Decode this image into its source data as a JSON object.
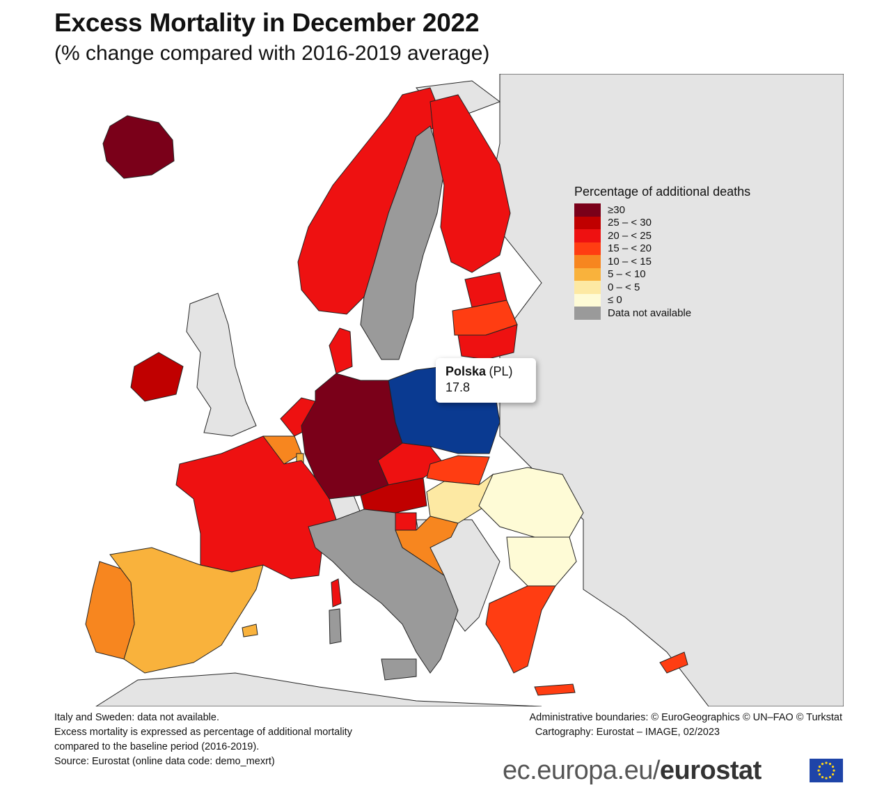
{
  "title": "Excess Mortality in December 2022",
  "subtitle": "(% change compared with 2016-2019 average)",
  "legend": {
    "title": "Percentage of additional deaths",
    "items": [
      {
        "label": "≥30",
        "color": "#7a0019"
      },
      {
        "label": "25 – < 30",
        "color": "#c00000"
      },
      {
        "label": "20 – < 25",
        "color": "#ee1111"
      },
      {
        "label": "15 – < 20",
        "color": "#ff3d12"
      },
      {
        "label": "10 – < 15",
        "color": "#f7861f"
      },
      {
        "label": "5 – < 10",
        "color": "#f9b23c"
      },
      {
        "label": "0 – < 5",
        "color": "#fde9a3"
      },
      {
        "label": "≤ 0",
        "color": "#fefbd6"
      },
      {
        "label": "Data not available",
        "color": "#9a9a9a"
      }
    ]
  },
  "tooltip": {
    "name": "Polska",
    "code": "(PL)",
    "value": "17.8",
    "highlight_color": "#0a3a91"
  },
  "colors": {
    "sea": "#ffffff",
    "non_eu_land": "#e4e4e4",
    "border": "#222222"
  },
  "notes": [
    "Italy and Sweden: data not available.",
    "Excess mortality is expressed as percentage of additional mortality",
    "compared to the baseline period (2016-2019).",
    "Source: Eurostat (online data code: demo_mexrt)"
  ],
  "credits": [
    "Administrative boundaries: © EuroGeographics © UN–FAO © Turkstat",
    "Cartography: Eurostat – IMAGE, 02/2023"
  ],
  "brand": {
    "prefix": "ec.europa.eu/",
    "name": "eurostat"
  }
}
